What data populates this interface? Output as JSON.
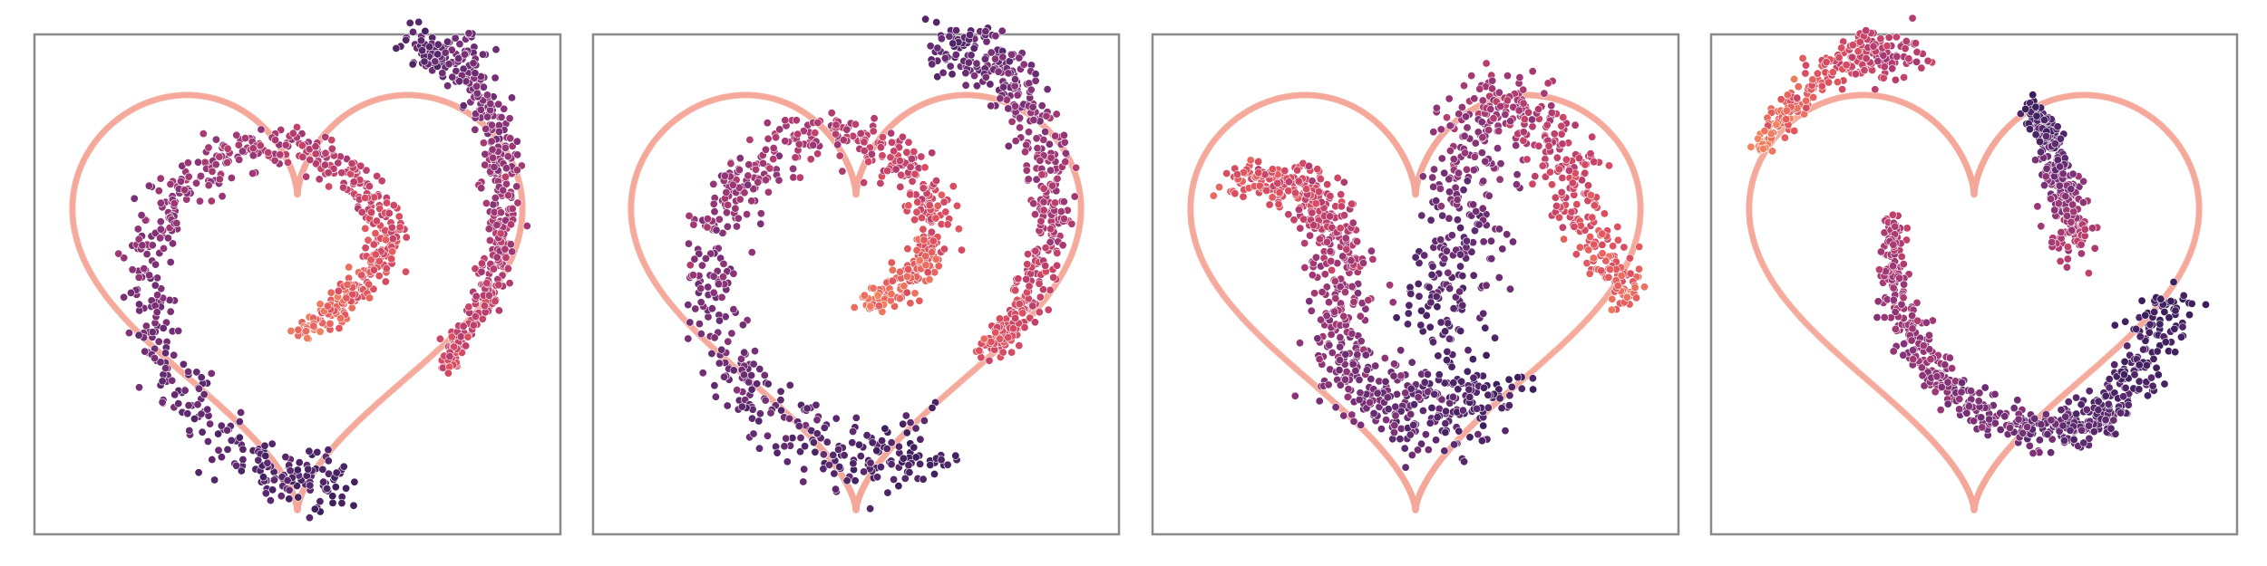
{
  "chart_data": [
    {
      "type": "scatter",
      "xlim": [
        -1.1,
        1.1
      ],
      "ylim": [
        -1.05,
        1.0
      ],
      "axes_visible": false,
      "grid": false,
      "heart_outline_color": "#f5a89a",
      "colormap": [
        "#f4845f",
        "#de4f5f",
        "#b83d6e",
        "#8a3478",
        "#5e2a6f",
        "#3b1f5c"
      ],
      "spiral_arms": [
        {
          "n": 700,
          "start": [
            0.02,
            -0.22
          ],
          "path": [
            [
              0.02,
              -0.22
            ],
            [
              0.24,
              -0.06
            ],
            [
              0.38,
              0.16
            ],
            [
              0.22,
              0.42
            ],
            [
              -0.08,
              0.55
            ],
            [
              -0.45,
              0.4
            ],
            [
              -0.62,
              0.05
            ],
            [
              -0.52,
              -0.42
            ],
            [
              -0.1,
              -0.8
            ],
            [
              0.2,
              -0.82
            ]
          ],
          "spread": 0.08,
          "color_start": 0.05,
          "color_end": 0.95
        },
        {
          "n": 450,
          "start": [
            0.62,
            -0.35
          ],
          "path": [
            [
              0.62,
              -0.35
            ],
            [
              0.82,
              0.0
            ],
            [
              0.85,
              0.45
            ],
            [
              0.72,
              0.85
            ],
            [
              0.5,
              0.95
            ]
          ],
          "spread": 0.065,
          "color_start": 0.25,
          "color_end": 0.85
        }
      ]
    },
    {
      "type": "scatter",
      "xlim": [
        -1.1,
        1.1
      ],
      "ylim": [
        -1.05,
        1.0
      ],
      "axes_visible": false,
      "grid": false,
      "heart_outline_color": "#f5a89a",
      "colormap": [
        "#f4845f",
        "#de4f5f",
        "#b83d6e",
        "#8a3478",
        "#5e2a6f",
        "#3b1f5c"
      ],
      "spiral_arms": [
        {
          "n": 700,
          "start": [
            0.05,
            -0.1
          ],
          "path": [
            [
              0.05,
              -0.1
            ],
            [
              0.28,
              0.05
            ],
            [
              0.32,
              0.28
            ],
            [
              0.12,
              0.52
            ],
            [
              -0.2,
              0.58
            ],
            [
              -0.5,
              0.35
            ],
            [
              -0.62,
              -0.02
            ],
            [
              -0.45,
              -0.45
            ],
            [
              -0.05,
              -0.72
            ],
            [
              0.3,
              -0.72
            ]
          ],
          "spread": 0.095,
          "color_start": 0.05,
          "color_end": 0.95
        },
        {
          "n": 450,
          "start": [
            0.55,
            -0.3
          ],
          "path": [
            [
              0.55,
              -0.3
            ],
            [
              0.78,
              0.05
            ],
            [
              0.8,
              0.5
            ],
            [
              0.62,
              0.85
            ],
            [
              0.4,
              0.95
            ]
          ],
          "spread": 0.08,
          "color_start": 0.2,
          "color_end": 0.85
        }
      ]
    },
    {
      "type": "scatter",
      "xlim": [
        -1.1,
        1.1
      ],
      "ylim": [
        -1.05,
        1.0
      ],
      "axes_visible": false,
      "grid": false,
      "heart_outline_color": "#f5a89a",
      "colormap": [
        "#f4845f",
        "#de4f5f",
        "#b83d6e",
        "#8a3478",
        "#5e2a6f",
        "#3b1f5c"
      ],
      "spiral_arms": [
        {
          "n": 650,
          "start": [
            -0.75,
            0.4
          ],
          "path": [
            [
              -0.75,
              0.4
            ],
            [
              -0.45,
              0.35
            ],
            [
              -0.3,
              0.05
            ],
            [
              -0.3,
              -0.35
            ],
            [
              0.05,
              -0.55
            ],
            [
              0.3,
              -0.45
            ]
          ],
          "spread": 0.12,
          "color_start": 0.15,
          "color_end": 0.95
        },
        {
          "n": 550,
          "start": [
            0.9,
            -0.1
          ],
          "path": [
            [
              0.9,
              -0.1
            ],
            [
              0.7,
              0.25
            ],
            [
              0.58,
              0.55
            ],
            [
              0.35,
              0.72
            ],
            [
              0.2,
              0.45
            ],
            [
              0.2,
              0.1
            ],
            [
              0.05,
              -0.2
            ]
          ],
          "spread": 0.12,
          "color_start": 0.1,
          "color_end": 0.9
        }
      ]
    },
    {
      "type": "scatter",
      "xlim": [
        -1.1,
        1.1
      ],
      "ylim": [
        -1.05,
        1.0
      ],
      "axes_visible": false,
      "grid": false,
      "heart_outline_color": "#f5a89a",
      "colormap": [
        "#f4845f",
        "#de4f5f",
        "#b83d6e",
        "#8a3478",
        "#5e2a6f",
        "#3b1f5c"
      ],
      "spiral_arms": [
        {
          "n": 600,
          "start": [
            -0.35,
            0.25
          ],
          "path": [
            [
              -0.35,
              0.25
            ],
            [
              -0.3,
              -0.15
            ],
            [
              -0.05,
              -0.5
            ],
            [
              0.35,
              -0.62
            ],
            [
              0.6,
              -0.48
            ],
            [
              0.85,
              -0.1
            ]
          ],
          "spread": 0.075,
          "color_start": 0.4,
          "color_end": 1.0
        },
        {
          "n": 300,
          "start": [
            0.25,
            0.7
          ],
          "path": [
            [
              0.25,
              0.7
            ],
            [
              0.35,
              0.45
            ],
            [
              0.42,
              0.15
            ]
          ],
          "spread": 0.06,
          "color_start": 1.0,
          "color_end": 0.4
        },
        {
          "n": 250,
          "start": [
            -0.9,
            0.55
          ],
          "path": [
            [
              -0.9,
              0.55
            ],
            [
              -0.6,
              0.85
            ],
            [
              -0.3,
              0.93
            ]
          ],
          "spread": 0.07,
          "color_start": 0.0,
          "color_end": 0.45
        }
      ]
    }
  ]
}
